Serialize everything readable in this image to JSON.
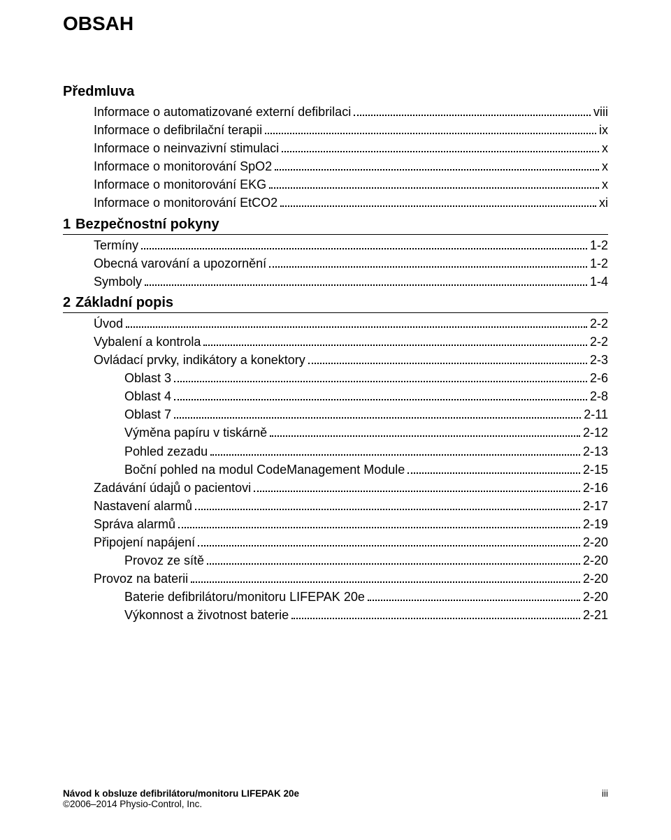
{
  "title": "OBSAH",
  "groups": [
    {
      "heading": "Předmluva",
      "rule": false,
      "items": [
        {
          "text": "Informace o automatizované externí defibrilaci",
          "page": "viii",
          "indent": 1
        },
        {
          "text": "Informace o defibrilační terapii",
          "page": "ix",
          "indent": 1
        },
        {
          "text": "Informace o neinvazivní stimulaci",
          "page": "x",
          "indent": 1
        },
        {
          "text": "Informace o monitorování SpO2",
          "page": "x",
          "indent": 1
        },
        {
          "text": "Informace o monitorování EKG",
          "page": "x",
          "indent": 1
        },
        {
          "text": "Informace o monitorování EtCO2",
          "page": "xi",
          "indent": 1
        }
      ]
    },
    {
      "num": "1",
      "heading": "Bezpečnostní pokyny",
      "rule": true,
      "items": [
        {
          "text": "Termíny",
          "page": "1-2",
          "indent": 1
        },
        {
          "text": "Obecná varování a upozornění",
          "page": "1-2",
          "indent": 1
        },
        {
          "text": "Symboly",
          "page": "1-4",
          "indent": 1
        }
      ]
    },
    {
      "num": "2",
      "heading": "Základní popis",
      "rule": true,
      "items": [
        {
          "text": "Úvod",
          "page": "2-2",
          "indent": 1
        },
        {
          "text": "Vybalení a kontrola",
          "page": "2-2",
          "indent": 1
        },
        {
          "text": "Ovládací prvky, indikátory a konektory",
          "page": "2-3",
          "indent": 1
        },
        {
          "text": "Oblast 3",
          "page": "2-6",
          "indent": 2
        },
        {
          "text": "Oblast 4",
          "page": "2-8",
          "indent": 2
        },
        {
          "text": "Oblast 7",
          "page": "2-11",
          "indent": 2
        },
        {
          "text": "Výměna papíru v tiskárně",
          "page": "2-12",
          "indent": 2
        },
        {
          "text": "Pohled zezadu",
          "page": "2-13",
          "indent": 2
        },
        {
          "text": "Boční pohled na modul CodeManagement Module",
          "page": "2-15",
          "indent": 2
        },
        {
          "text": "Zadávání údajů o pacientovi",
          "page": "2-16",
          "indent": 1
        },
        {
          "text": "Nastavení alarmů",
          "page": "2-17",
          "indent": 1
        },
        {
          "text": "Správa alarmů",
          "page": "2-19",
          "indent": 1
        },
        {
          "text": "Připojení napájení",
          "page": "2-20",
          "indent": 1
        },
        {
          "text": "Provoz ze sítě",
          "page": "2-20",
          "indent": 2
        },
        {
          "text": "Provoz na baterii",
          "page": "2-20",
          "indent": 1
        },
        {
          "text": "Baterie defibrilátoru/monitoru LIFEPAK 20e",
          "page": "2-20",
          "indent": 2
        },
        {
          "text": "Výkonnost a životnost baterie",
          "page": "2-21",
          "indent": 2
        }
      ]
    }
  ],
  "footer": {
    "left": "Návod k obsluze defibrilátoru/monitoru LIFEPAK 20e",
    "right": "iii",
    "copyright": "©2006–2014 Physio-Control, Inc."
  }
}
